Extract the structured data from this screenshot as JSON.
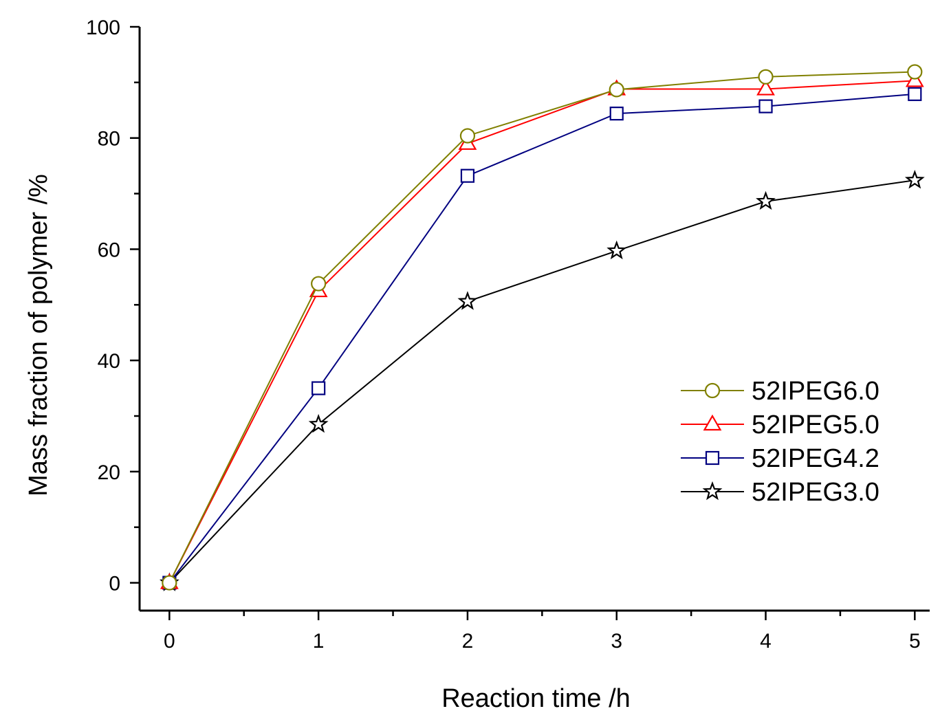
{
  "chart_data": {
    "type": "line",
    "xlabel": "Reaction time /h",
    "ylabel": "Mass fraction of polymer /%",
    "xlim": [
      -0.2,
      5.1
    ],
    "ylim": [
      -5,
      100
    ],
    "xticks": [
      0,
      1,
      2,
      3,
      4,
      5
    ],
    "yticks": [
      0,
      20,
      40,
      60,
      80,
      100
    ],
    "legend_position": "center-right",
    "grid": false,
    "x": [
      0,
      1,
      2,
      3,
      4,
      5
    ],
    "series": [
      {
        "name": "52IPEG6.0",
        "marker": "circle",
        "color": "#808000",
        "values": [
          0,
          53.8,
          80.4,
          88.7,
          91.0,
          91.9
        ]
      },
      {
        "name": "52IPEG5.0",
        "marker": "triangle",
        "color": "#ff0000",
        "values": [
          0,
          52.5,
          79.0,
          88.8,
          88.8,
          90.3
        ]
      },
      {
        "name": "52IPEG4.2",
        "marker": "square",
        "color": "#000080",
        "values": [
          0,
          35.0,
          73.2,
          84.4,
          85.7,
          87.9
        ]
      },
      {
        "name": "52IPEG3.0",
        "marker": "star",
        "color": "#000000",
        "values": [
          0,
          28.5,
          50.6,
          59.7,
          68.6,
          72.4
        ]
      }
    ]
  }
}
